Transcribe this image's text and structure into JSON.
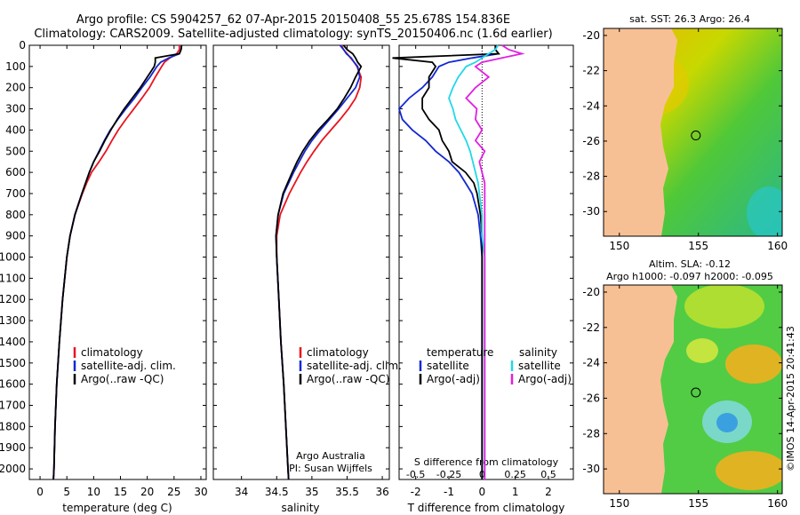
{
  "header": {
    "line1": "Argo profile: CS 5904257_62 07-Apr-2015 20150408_55 25.678S 154.836E",
    "line2": "Climatology: CARS2009. Satellite-adjusted climatology: synTS_20150406.nc (1.6d earlier)"
  },
  "colors": {
    "clim": "#e8141e",
    "sat": "#1428d2",
    "argo": "#000000",
    "sat_s": "#22d8e8",
    "argo_s": "#e020e0"
  },
  "chart_data": [
    {
      "type": "line",
      "id": "temperature",
      "xlabel": "temperature (deg C)",
      "xlim": [
        -2,
        31
      ],
      "xticks": [
        "0",
        "5",
        "10",
        "15",
        "20",
        "25",
        "30"
      ],
      "ylim": [
        0,
        2050
      ],
      "yticks": [
        "0",
        "100",
        "200",
        "300",
        "400",
        "500",
        "600",
        "700",
        "800",
        "900",
        "1000",
        "1100",
        "1200",
        "1300",
        "1400",
        "1500",
        "1600",
        "1700",
        "1800",
        "1900",
        "2000"
      ],
      "depth": [
        0,
        20,
        40,
        60,
        80,
        100,
        150,
        200,
        250,
        300,
        350,
        400,
        450,
        500,
        550,
        600,
        650,
        700,
        800,
        900,
        1000,
        1200,
        1400,
        1600,
        1800,
        2000,
        2050
      ],
      "series": [
        {
          "name": "climatology",
          "color_key": "clim",
          "values": [
            26.0,
            26.0,
            25.5,
            24.2,
            23.2,
            22.7,
            21.5,
            20.4,
            19.0,
            17.5,
            16.0,
            14.6,
            13.4,
            12.3,
            11.0,
            9.6,
            8.7,
            7.9,
            6.5,
            5.6,
            5.0,
            4.2,
            3.6,
            3.1,
            2.8,
            2.6,
            2.5
          ]
        },
        {
          "name": "satellite-adj. clim.",
          "color_key": "sat",
          "values": [
            26.4,
            26.3,
            26.0,
            24.0,
            22.5,
            21.8,
            20.5,
            19.0,
            17.6,
            16.0,
            14.5,
            13.1,
            12.0,
            11.0,
            10.0,
            9.2,
            8.5,
            7.8,
            6.5,
            5.6,
            5.0,
            4.2,
            3.6,
            3.1,
            2.8,
            2.6,
            2.5
          ]
        },
        {
          "name": "Argo(..raw -QC)",
          "color_key": "argo",
          "values": [
            26.4,
            26.3,
            26.0,
            21.5,
            21.5,
            21.3,
            20.0,
            18.7,
            17.2,
            15.7,
            14.4,
            13.2,
            12.1,
            11.1,
            10.0,
            9.2,
            8.5,
            7.8,
            6.5,
            5.6,
            5.0,
            4.2,
            3.6,
            3.1,
            2.8,
            2.6,
            2.5
          ]
        }
      ],
      "legend": [
        "climatology",
        "satellite-adj. clim.",
        "Argo(..raw -QC)"
      ]
    },
    {
      "type": "line",
      "id": "salinity",
      "xlabel": "salinity",
      "xlim": [
        33.6,
        36.1
      ],
      "xticks": [
        "34",
        "34.5",
        "35",
        "35.5",
        "36"
      ],
      "ylim": [
        0,
        2050
      ],
      "depth": [
        0,
        20,
        40,
        60,
        80,
        100,
        150,
        200,
        250,
        300,
        350,
        400,
        450,
        500,
        550,
        600,
        700,
        800,
        900,
        1000,
        1200,
        1400,
        1600,
        1800,
        2000,
        2050
      ],
      "series": [
        {
          "name": "climatology",
          "color_key": "clim",
          "values": [
            35.42,
            35.45,
            35.5,
            35.55,
            35.6,
            35.64,
            35.7,
            35.68,
            35.62,
            35.52,
            35.4,
            35.27,
            35.14,
            35.03,
            34.93,
            34.84,
            34.68,
            34.55,
            34.5,
            34.5,
            34.53,
            34.56,
            34.6,
            34.63,
            34.66,
            34.67
          ]
        },
        {
          "name": "satellite-adj. clim.",
          "color_key": "sat",
          "values": [
            35.4,
            35.45,
            35.49,
            35.56,
            35.6,
            35.65,
            35.68,
            35.62,
            35.5,
            35.38,
            35.25,
            35.12,
            35.0,
            34.9,
            34.82,
            34.74,
            34.6,
            34.52,
            34.49,
            34.5,
            34.53,
            34.56,
            34.6,
            34.63,
            34.66,
            34.67
          ]
        },
        {
          "name": "Argo(..raw -QC)",
          "color_key": "argo",
          "values": [
            35.45,
            35.5,
            35.58,
            35.62,
            35.65,
            35.7,
            35.62,
            35.55,
            35.46,
            35.36,
            35.23,
            35.09,
            34.97,
            34.87,
            34.79,
            34.72,
            34.59,
            34.52,
            34.49,
            34.5,
            34.53,
            34.56,
            34.6,
            34.63,
            34.66,
            34.67
          ]
        }
      ],
      "legend": [
        "climatology",
        "satellite-adj. clim.",
        "Argo(..raw -QC)"
      ],
      "annotation": [
        "Argo Australia",
        "PI: Susan Wijffels"
      ]
    },
    {
      "type": "line",
      "id": "difference",
      "xlabel": "T difference from climatology",
      "xlabel_top": "S difference from climatology",
      "xlim": [
        -2.5,
        2.75
      ],
      "xticks": [
        "-2",
        "-1",
        "0",
        "1",
        "2"
      ],
      "sticks": [
        "-0.5",
        "-0.25",
        "0",
        "0.25",
        "0.5"
      ],
      "zero_line": "dotted",
      "depth": [
        0,
        20,
        40,
        60,
        80,
        100,
        150,
        200,
        250,
        300,
        350,
        400,
        450,
        500,
        550,
        600,
        650,
        700,
        800,
        900,
        1000,
        1200,
        1400,
        1600,
        1800,
        2000,
        2050
      ],
      "series": [
        {
          "name": "T satellite",
          "color_key": "sat",
          "values": [
            0.4,
            0.4,
            0.5,
            -0.3,
            -1.0,
            -1.3,
            -1.5,
            -1.8,
            -2.2,
            -2.5,
            -2.4,
            -2.1,
            -1.7,
            -1.4,
            -1.0,
            -0.7,
            -0.5,
            -0.3,
            -0.12,
            -0.05,
            0,
            0,
            0,
            0,
            0,
            0,
            0
          ]
        },
        {
          "name": "T Argo(-adj)",
          "color_key": "argo",
          "values": [
            0.4,
            0.4,
            0.5,
            -2.7,
            -1.5,
            -1.4,
            -1.6,
            -1.6,
            -1.8,
            -1.8,
            -1.6,
            -1.3,
            -1.2,
            -1.0,
            -0.9,
            -0.5,
            -0.25,
            -0.15,
            -0.05,
            0,
            0,
            0,
            0,
            0,
            0,
            0,
            0
          ]
        },
        {
          "name": "S satellite",
          "color_key": "sat_s",
          "values": [
            0.12,
            0.1,
            0.05,
            0.0,
            -0.05,
            -0.12,
            -0.18,
            -0.22,
            -0.25,
            -0.22,
            -0.2,
            -0.16,
            -0.12,
            -0.09,
            -0.07,
            -0.05,
            -0.03,
            -0.02,
            0.0,
            0.0,
            0.02,
            0.02,
            0.02,
            0.02,
            0.02,
            0.02,
            0.02
          ]
        },
        {
          "name": "S Argo(-adj)",
          "color_key": "argo_s",
          "values": [
            0.15,
            0.2,
            0.3,
            0.15,
            0.0,
            -0.05,
            0.05,
            -0.05,
            -0.12,
            -0.04,
            -0.05,
            0.0,
            -0.05,
            0.02,
            -0.02,
            0.0,
            0.02,
            0.02,
            0.02,
            0.02,
            0.02,
            0.02,
            0.02,
            0.02,
            0.02,
            0.02,
            0.02
          ]
        }
      ],
      "legend_left_title": "temperature",
      "legend_right_title": "salinity",
      "legend_left": [
        "satellite",
        "Argo(-adj)"
      ],
      "legend_right": [
        "satellite",
        "Argo(-adj)"
      ]
    },
    {
      "type": "heatmap",
      "id": "sst_map",
      "title": "sat. SST: 26.3 Argo: 26.4",
      "xlim": [
        149,
        160.3
      ],
      "ylim": [
        -31.4,
        -19.6
      ],
      "xticks": [
        "150",
        "155",
        "160"
      ],
      "yticks": [
        "-20",
        "-22",
        "-24",
        "-26",
        "-28",
        "-30"
      ],
      "marker": {
        "lon": 154.836,
        "lat": -25.678
      }
    },
    {
      "type": "heatmap",
      "id": "sla_map",
      "title": "Altim. SLA: -0.12",
      "subtitle": "Argo h1000: -0.097 h2000: -0.095",
      "xlim": [
        149,
        160.3
      ],
      "ylim": [
        -31.4,
        -19.6
      ],
      "xticks": [
        "150",
        "155",
        "160"
      ],
      "yticks": [
        "-20",
        "-22",
        "-24",
        "-26",
        "-28",
        "-30"
      ],
      "marker": {
        "lon": 154.836,
        "lat": -25.678
      }
    }
  ],
  "footer": {
    "credit": "©IMOS 14-Apr-2015 20:41:43"
  }
}
